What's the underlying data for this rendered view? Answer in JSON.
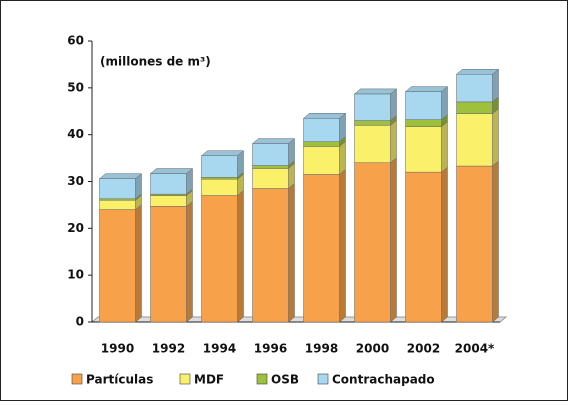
{
  "chart_data": {
    "type": "stacked-bar",
    "annotation": "(millones de m³)",
    "categories": [
      "1990",
      "1992",
      "1994",
      "1996",
      "1998",
      "2000",
      "2002",
      "2004*"
    ],
    "series": [
      {
        "name": "Partículas",
        "color": "#f7a24a",
        "values": [
          24,
          24.7,
          27,
          28.5,
          31.5,
          34,
          32,
          33.3
        ]
      },
      {
        "name": "MDF",
        "color": "#fbf06a",
        "values": [
          2,
          2.3,
          3.5,
          4.3,
          6,
          8,
          9.7,
          11.2
        ]
      },
      {
        "name": "OSB",
        "color": "#9dc13c",
        "values": [
          0.3,
          0.3,
          0.4,
          0.6,
          1,
          1,
          1.5,
          2.5
        ]
      },
      {
        "name": "Contrachapado",
        "color": "#a8d8ef",
        "values": [
          4.3,
          4.4,
          4.6,
          4.7,
          5,
          5.7,
          6,
          5.9
        ]
      }
    ],
    "ylim": [
      0,
      60
    ],
    "yticks": [
      0,
      10,
      20,
      30,
      40,
      50,
      60
    ],
    "grid": false,
    "legend": "bottom"
  }
}
